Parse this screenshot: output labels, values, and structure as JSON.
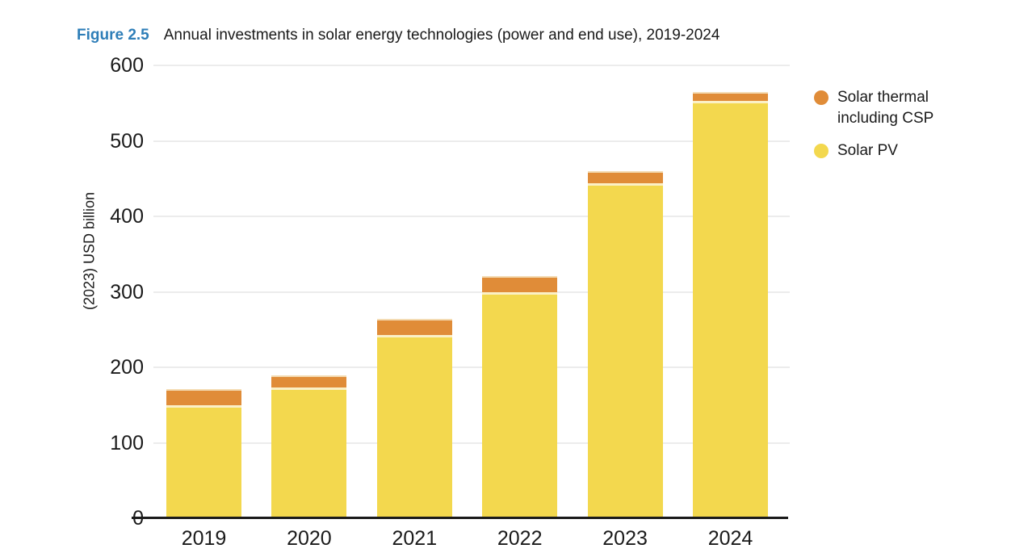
{
  "figure": {
    "label": "Figure 2.5",
    "title": "Annual investments in solar energy technologies (power and end use), 2019-2024"
  },
  "chart_data": {
    "type": "bar",
    "stacked": true,
    "title": "Annual investments in solar energy technologies (power and end use), 2019-2024",
    "categories": [
      "2019",
      "2020",
      "2021",
      "2022",
      "2023",
      "2024"
    ],
    "series": [
      {
        "name": "Solar PV",
        "color": "#F3D84E",
        "values": [
          150,
          173,
          243,
          300,
          444,
          553
        ]
      },
      {
        "name": "Solar thermal including CSP",
        "color": "#E08C38",
        "values": [
          21,
          16,
          21,
          21,
          16,
          12
        ]
      }
    ],
    "totals": [
      171,
      189,
      264,
      321,
      460,
      565
    ],
    "xlabel": "",
    "ylabel": "(2023) USD billion",
    "ylim": [
      0,
      600
    ],
    "yticks": [
      0,
      100,
      200,
      300,
      400,
      500,
      600
    ],
    "grid": true,
    "legend_position": "right"
  },
  "legend": {
    "items": [
      {
        "label_lines": [
          "Solar thermal",
          "including CSP"
        ],
        "color": "#E08C38",
        "series": "Solar thermal including CSP"
      },
      {
        "label_lines": [
          "Solar PV"
        ],
        "color": "#F3D84E",
        "series": "Solar PV"
      }
    ]
  },
  "colors": {
    "figure_label_blue": "#2E7EB8",
    "solar_pv_yellow": "#F3D84E",
    "solar_thermal_orange": "#E08C38",
    "segment_separator_cream": "#FBF0C6",
    "gridline_gray": "#ECECEC",
    "axis_black": "#1A1A1A",
    "text": "#1A1A1A",
    "background": "#FFFFFF"
  }
}
